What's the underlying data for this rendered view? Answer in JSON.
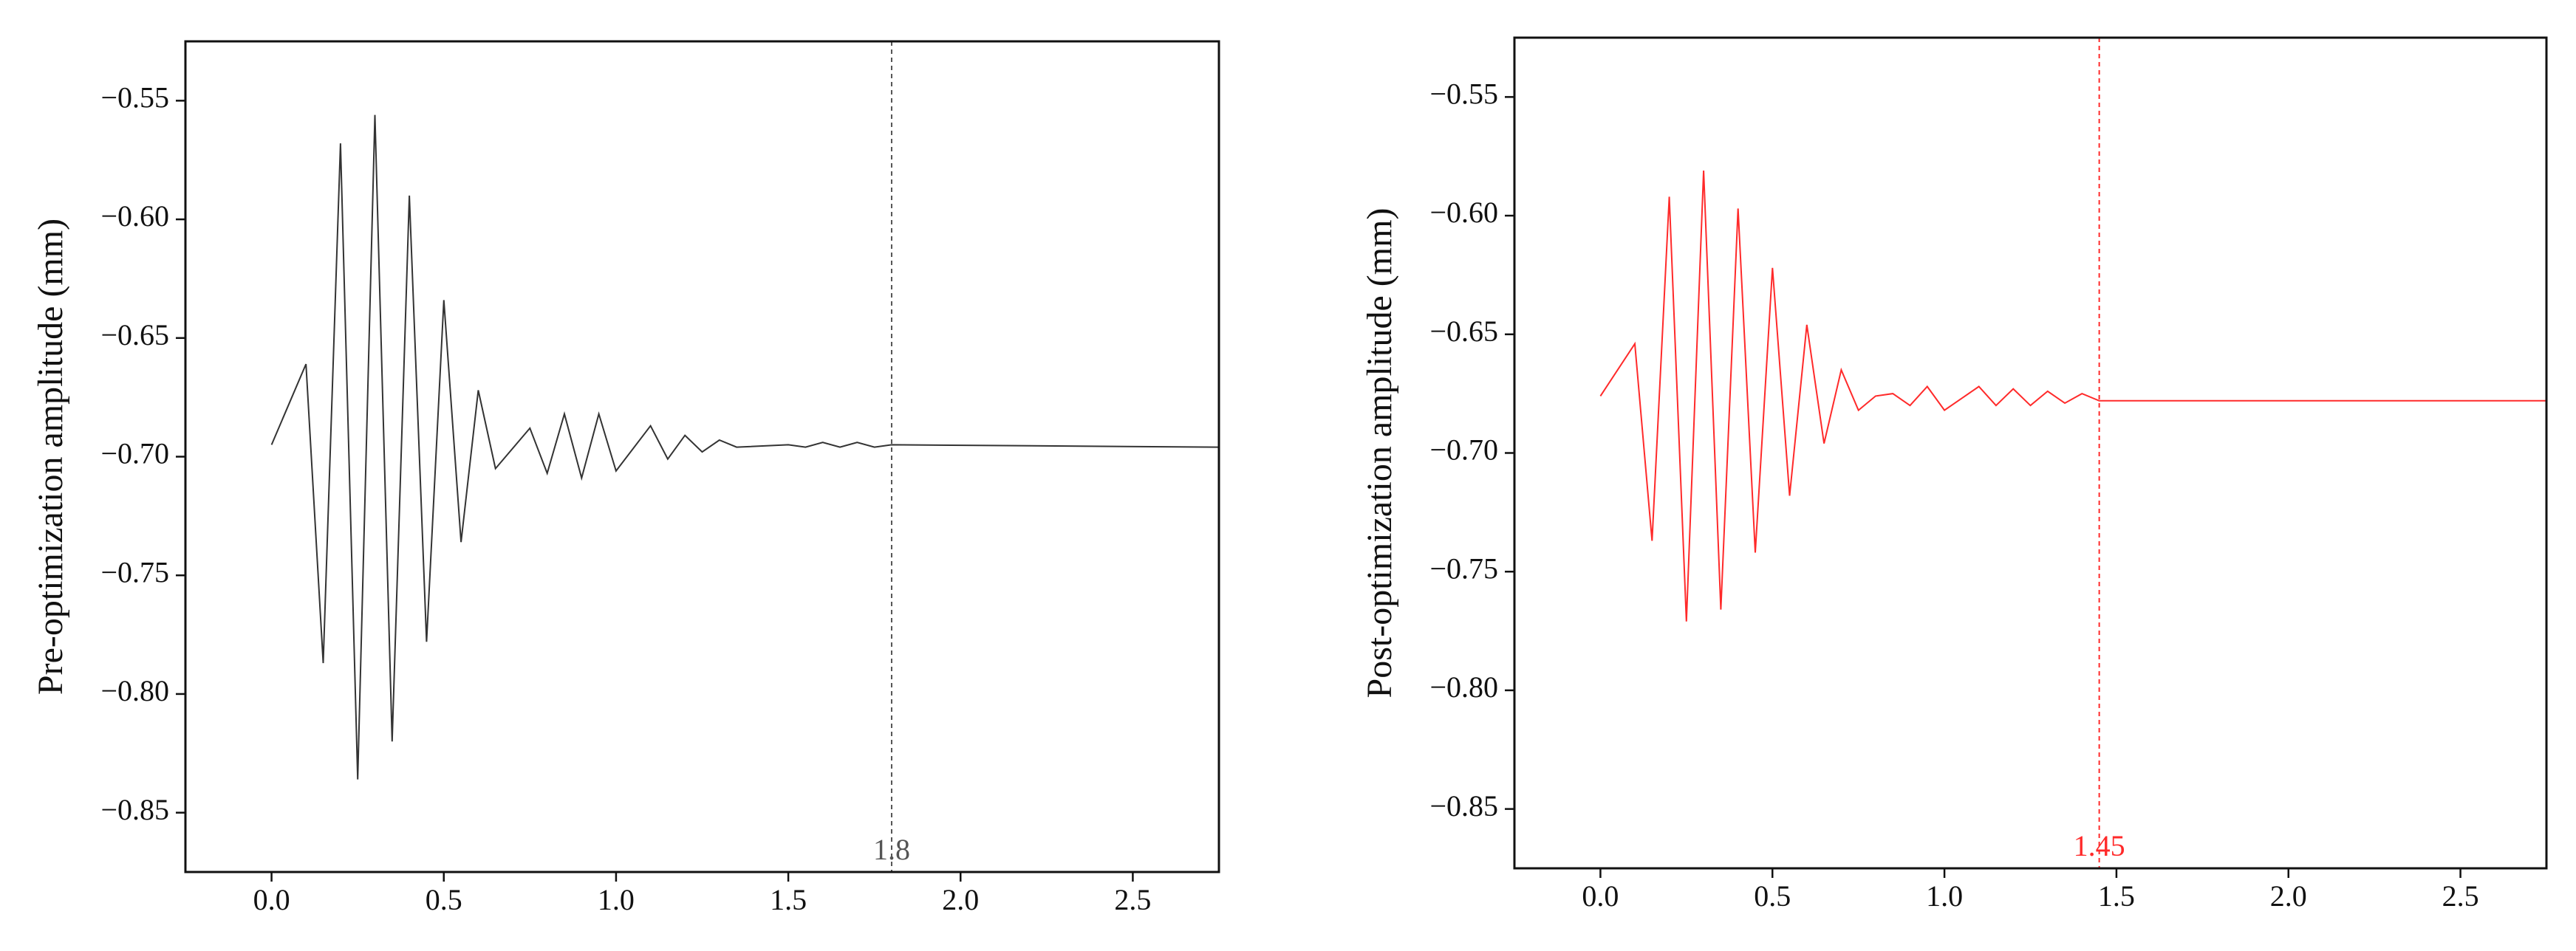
{
  "chart_data": [
    {
      "type": "line",
      "y_label": "Pre-optimization amplitude (mm)",
      "x": [
        0,
        0.1,
        0.15,
        0.2,
        0.25,
        0.3,
        0.35,
        0.4,
        0.45,
        0.5,
        0.55,
        0.6,
        0.65,
        0.75,
        0.8,
        0.85,
        0.9,
        0.95,
        1.0,
        1.1,
        1.15,
        1.2,
        1.25,
        1.3,
        1.35,
        1.5,
        1.55,
        1.6,
        1.65,
        1.7,
        1.75,
        1.8,
        2.75
      ],
      "series": [
        {
          "color": "#333333",
          "values": [
            -0.695,
            -0.661,
            -0.787,
            -0.568,
            -0.836,
            -0.556,
            -0.82,
            -0.59,
            -0.778,
            -0.634,
            -0.736,
            -0.672,
            -0.705,
            -0.688,
            -0.707,
            -0.682,
            -0.709,
            -0.682,
            -0.706,
            -0.687,
            -0.701,
            -0.691,
            -0.698,
            -0.693,
            -0.696,
            -0.695,
            -0.696,
            -0.694,
            -0.696,
            -0.694,
            -0.696,
            -0.695,
            -0.696
          ]
        }
      ],
      "vline": 1.8,
      "vline_color": "#555555",
      "xlim": [
        -0.25,
        2.75
      ],
      "xticks": [
        {
          "value": 0,
          "label": "0.0"
        },
        {
          "value": 0.5,
          "label": "0.5"
        },
        {
          "value": 1,
          "label": "1.0"
        },
        {
          "value": 1.5,
          "label": "1.5"
        },
        {
          "value": 2,
          "label": "2.0"
        },
        {
          "value": 2.5,
          "label": "2.5"
        }
      ],
      "ylim": [
        -0.875,
        -0.525
      ],
      "yticks": [
        {
          "value": -0.55,
          "label": "−0.55"
        },
        {
          "value": -0.6,
          "label": "−0.60"
        },
        {
          "value": -0.65,
          "label": "−0.65"
        },
        {
          "value": -0.7,
          "label": "−0.70"
        },
        {
          "value": -0.75,
          "label": "−0.75"
        },
        {
          "value": -0.8,
          "label": "−0.80"
        },
        {
          "value": -0.85,
          "label": "−0.85"
        }
      ]
    },
    {
      "type": "line",
      "y_label": "Post-optimization amplitude (mm)",
      "x": [
        0,
        0.1,
        0.15,
        0.2,
        0.25,
        0.3,
        0.35,
        0.4,
        0.45,
        0.5,
        0.55,
        0.6,
        0.65,
        0.7,
        0.75,
        0.8,
        0.85,
        0.9,
        0.95,
        1.0,
        1.05,
        1.1,
        1.15,
        1.2,
        1.25,
        1.3,
        1.35,
        1.4,
        1.45,
        2.75
      ],
      "series": [
        {
          "color": "#ff2a2a",
          "values": [
            -0.676,
            -0.654,
            -0.737,
            -0.592,
            -0.771,
            -0.581,
            -0.766,
            -0.597,
            -0.742,
            -0.622,
            -0.718,
            -0.646,
            -0.696,
            -0.665,
            -0.682,
            -0.676,
            -0.675,
            -0.68,
            -0.672,
            -0.682,
            -0.677,
            -0.672,
            -0.68,
            -0.673,
            -0.68,
            -0.674,
            -0.679,
            -0.675,
            -0.678,
            -0.678
          ]
        }
      ],
      "vline": 1.45,
      "vline_color": "#ff2a2a",
      "xlim": [
        -0.25,
        2.75
      ],
      "xticks": [
        {
          "value": 0,
          "label": "0.0"
        },
        {
          "value": 0.5,
          "label": "0.5"
        },
        {
          "value": 1,
          "label": "1.0"
        },
        {
          "value": 1.5,
          "label": "1.5"
        },
        {
          "value": 2,
          "label": "2.0"
        },
        {
          "value": 2.5,
          "label": "2.5"
        }
      ],
      "ylim": [
        -0.875,
        -0.525
      ],
      "yticks": [
        {
          "value": -0.55,
          "label": "−0.55"
        },
        {
          "value": -0.6,
          "label": "−0.60"
        },
        {
          "value": -0.65,
          "label": "−0.65"
        },
        {
          "value": -0.7,
          "label": "−0.70"
        },
        {
          "value": -0.75,
          "label": "−0.75"
        },
        {
          "value": -0.8,
          "label": "−0.80"
        },
        {
          "value": -0.85,
          "label": "−0.85"
        }
      ]
    }
  ]
}
